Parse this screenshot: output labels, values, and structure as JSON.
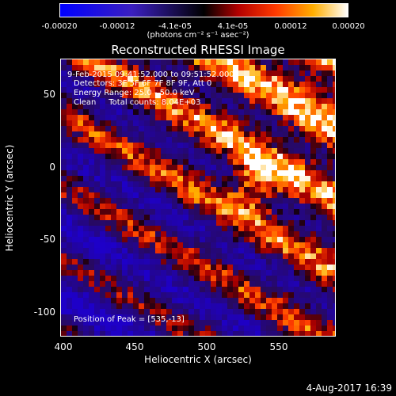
{
  "chart_data": {
    "type": "heatmap",
    "title": "Reconstructed RHESSI Image",
    "xlabel": "Heliocentric X (arcsec)",
    "ylabel": "Heliocentric Y (arcsec)",
    "xlim": [
      400,
      590
    ],
    "ylim": [
      -120,
      75
    ],
    "x_ticks": [
      "400",
      "450",
      "500",
      "550"
    ],
    "y_ticks": [
      "50",
      "0",
      "-50",
      "-100"
    ],
    "colorbar": {
      "ticks": [
        "-0.00020",
        "-0.00012",
        "-4.1e-05",
        "4.1e-05",
        "0.00012",
        "0.00020"
      ],
      "units": "(photons cm⁻² s⁻¹ asec⁻²)",
      "range": [
        -0.0002,
        0.0002
      ]
    },
    "annotations": {
      "time_range": "9-Feb-2015 09:41:52.000 to 09:51:52.000",
      "detectors": "Detectors: 3F 5F 6F 7F 8F 9F, Att 0",
      "energy": "Energy Range: 25.0 - 50.0 keV",
      "method": "Clean     Total counts: 8.04E+03",
      "peak": "Position of Peak = [535,-13]"
    },
    "peak_position": [
      535,
      -13
    ]
  },
  "timestamp": "4-Aug-2017 16:39"
}
